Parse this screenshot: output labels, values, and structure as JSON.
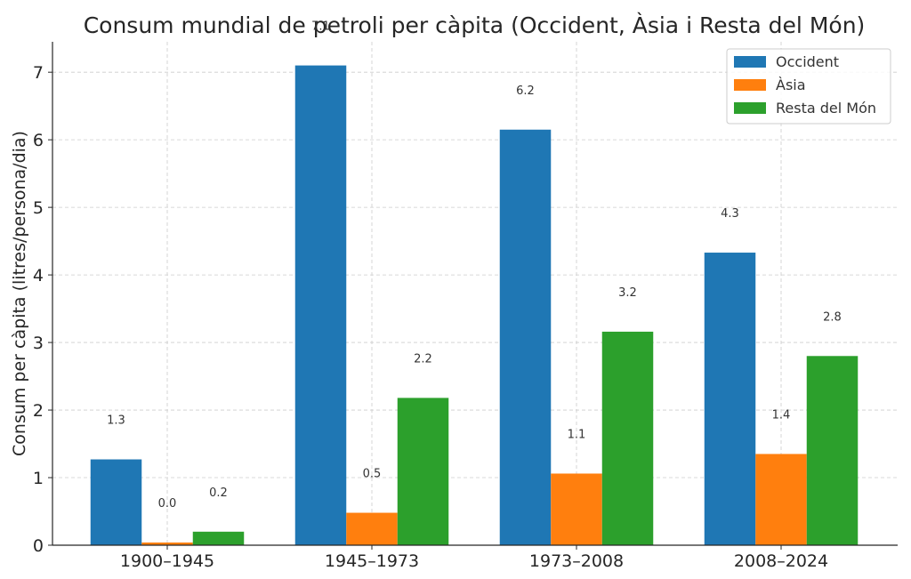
{
  "chart_data": {
    "type": "bar",
    "title": "Consum mundial de petroli per càpita (Occident, Àsia i Resta del Món)",
    "xlabel": "",
    "ylabel": "Consum per càpita (litres/persona/dia)",
    "categories": [
      "1900–1945",
      "1945–1973",
      "1973–2008",
      "2008–2024"
    ],
    "series": [
      {
        "name": "Occident",
        "color": "#1f77b4",
        "values": [
          1.27,
          7.1,
          6.15,
          4.33
        ],
        "labels": [
          "1.3",
          "7.1",
          "6.2",
          "4.3"
        ]
      },
      {
        "name": "Àsia",
        "color": "#ff7f0e",
        "values": [
          0.04,
          0.48,
          1.06,
          1.35
        ],
        "labels": [
          "0.0",
          "0.5",
          "1.1",
          "1.4"
        ]
      },
      {
        "name": "Resta del Món",
        "color": "#2ca02c",
        "values": [
          0.2,
          2.18,
          3.16,
          2.8
        ],
        "labels": [
          "0.2",
          "2.2",
          "3.2",
          "2.8"
        ]
      }
    ],
    "ylim": [
      0,
      7.45
    ],
    "yticks": [
      "0",
      "1",
      "2",
      "3",
      "4",
      "5",
      "6",
      "7"
    ],
    "grid": true,
    "legend_position": "top-right"
  }
}
